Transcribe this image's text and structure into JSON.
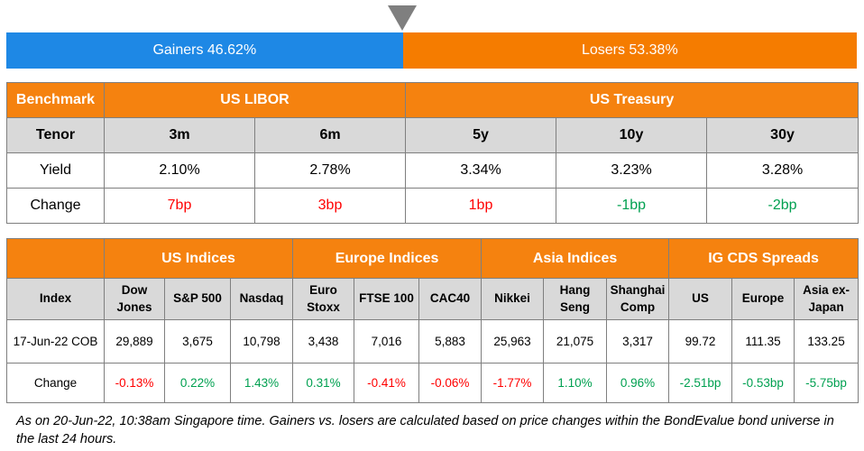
{
  "gainers_losers": {
    "gainers_label": "Gainers 46.62%",
    "losers_label": "Losers 53.38%",
    "gainers_pct": 46.62,
    "losers_pct": 53.38
  },
  "rates": {
    "benchmark_header": "Benchmark",
    "libor_header": "US LIBOR",
    "treasury_header": "US Treasury",
    "tenor_label": "Tenor",
    "tenors": [
      "3m",
      "6m",
      "5y",
      "10y",
      "30y"
    ],
    "yield_label": "Yield",
    "yields": [
      "2.10%",
      "2.78%",
      "3.34%",
      "3.23%",
      "3.28%"
    ],
    "change_label": "Change",
    "changes": [
      "7bp",
      "3bp",
      "1bp",
      "-1bp",
      "-2bp"
    ]
  },
  "indices": {
    "groups": [
      "US Indices",
      "Europe Indices",
      "Asia Indices",
      "IG CDS Spreads"
    ],
    "index_label": "Index",
    "names": [
      "Dow Jones",
      "S&P 500",
      "Nasdaq",
      "Euro Stoxx",
      "FTSE 100",
      "CAC40",
      "Nikkei",
      "Hang Seng",
      "Shanghai Comp",
      "US",
      "Europe",
      "Asia ex-Japan"
    ],
    "date_label": "17-Jun-22 COB",
    "values": [
      "29,889",
      "3,675",
      "10,798",
      "3,438",
      "7,016",
      "5,883",
      "25,963",
      "21,075",
      "3,317",
      "99.72",
      "111.35",
      "133.25"
    ],
    "change_label": "Change",
    "changes": [
      "-0.13%",
      "0.22%",
      "1.43%",
      "0.31%",
      "-0.41%",
      "-0.06%",
      "-1.77%",
      "1.10%",
      "0.96%",
      "-2.51bp",
      "-0.53bp",
      "-5.75bp"
    ]
  },
  "colors": {
    "gainers": "#1e88e5",
    "losers": "#f57c00",
    "header_orange": "#f5820f",
    "header_grey": "#d9d9d9",
    "negative_red": "#ff0000",
    "positive_green": "#00a050"
  },
  "icons": {
    "pointer": "triangle-down-icon"
  },
  "footnote": "As on 20-Jun-22, 10:38am Singapore time. Gainers vs. losers are calculated based on price changes within the BondEvalue bond universe in the last 24 hours."
}
